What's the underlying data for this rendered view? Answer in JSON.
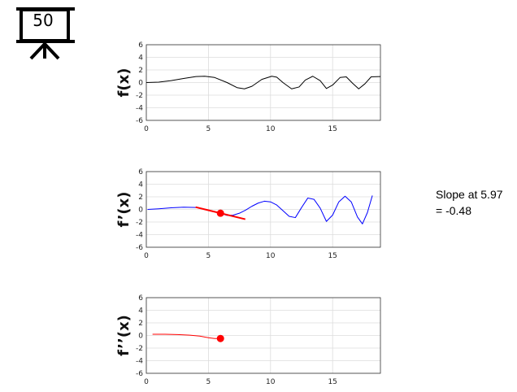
{
  "badge": {
    "number": "50",
    "icon": "presentation-board-icon"
  },
  "slope_note": {
    "line1": "Slope at 5.97",
    "line2": "= -0.48"
  },
  "chart_data": [
    {
      "type": "line",
      "id": "f",
      "ylabel": "f(x)",
      "xlim": [
        0,
        18.85
      ],
      "ylim": [
        -6,
        6
      ],
      "xticks": [
        0,
        5,
        10,
        15
      ],
      "yticks": [
        -6,
        -4,
        -2,
        0,
        2,
        4,
        6
      ],
      "grid": true,
      "series": [
        {
          "color": "#000000",
          "x": [
            0,
            1,
            2,
            3,
            4,
            4.7,
            5.5,
            6.5,
            7.3,
            7.9,
            8.5,
            9.3,
            10.1,
            10.5,
            11.0,
            11.7,
            12.3,
            12.8,
            13.4,
            14.0,
            14.5,
            15.0,
            15.6,
            16.1,
            16.6,
            17.1,
            17.6,
            18.1,
            18.85
          ],
          "y": [
            0,
            0.07,
            0.3,
            0.65,
            0.95,
            1.0,
            0.8,
            0.0,
            -0.8,
            -1.0,
            -0.6,
            0.5,
            1.0,
            0.85,
            0.0,
            -1.0,
            -0.7,
            0.4,
            1.0,
            0.3,
            -0.95,
            -0.4,
            0.8,
            0.9,
            -0.1,
            -1.0,
            -0.2,
            0.9,
            0.95
          ]
        }
      ]
    },
    {
      "type": "line",
      "id": "fprime",
      "ylabel": "f’(x)",
      "xlim": [
        0,
        18.85
      ],
      "ylim": [
        -6,
        6
      ],
      "xticks": [
        0,
        5,
        10,
        15
      ],
      "yticks": [
        -6,
        -4,
        -2,
        0,
        2,
        4,
        6
      ],
      "grid": true,
      "series": [
        {
          "color": "#0000ff",
          "x": [
            0.1,
            1,
            2,
            3,
            4,
            5,
            5.97,
            6.5,
            7,
            7.5,
            8,
            8.5,
            9,
            9.5,
            10,
            10.5,
            11,
            11.5,
            12,
            12.5,
            13,
            13.5,
            14,
            14.5,
            15,
            15.5,
            16,
            16.5,
            17,
            17.4,
            17.8,
            18.2
          ],
          "y": [
            0,
            0.1,
            0.25,
            0.35,
            0.3,
            -0.1,
            -0.6,
            -0.95,
            -0.9,
            -0.6,
            -0.1,
            0.5,
            1.0,
            1.3,
            1.2,
            0.7,
            -0.2,
            -1.1,
            -1.3,
            0.3,
            1.8,
            1.6,
            0.2,
            -1.9,
            -0.9,
            1.2,
            2.1,
            1.2,
            -1.2,
            -2.3,
            -0.5,
            2.2
          ]
        },
        {
          "name": "",
          "color": "#ff0000",
          "x": [
            3.97,
            7.97
          ],
          "y": [
            0.36,
            -1.56
          ]
        }
      ],
      "highlight_point": {
        "x": 5.97,
        "y": -0.6,
        "color": "#ff0000"
      }
    },
    {
      "type": "line",
      "id": "fdoubleprime",
      "ylabel": "f’’(x)",
      "xlim": [
        0,
        18.85
      ],
      "ylim": [
        -6,
        6
      ],
      "xticks": [
        0,
        5,
        10,
        15
      ],
      "yticks": [
        -6,
        -4,
        -2,
        0,
        2,
        4,
        6
      ],
      "grid": true,
      "series": [
        {
          "color": "#ff0000",
          "x": [
            0.5,
            1.5,
            2.5,
            3.5,
            4.3,
            5.0,
            5.5,
            5.97
          ],
          "y": [
            0.2,
            0.2,
            0.15,
            0.05,
            -0.1,
            -0.35,
            -0.48,
            -0.48
          ]
        }
      ],
      "highlight_point": {
        "x": 5.97,
        "y": -0.48,
        "color": "#ff0000"
      }
    }
  ]
}
